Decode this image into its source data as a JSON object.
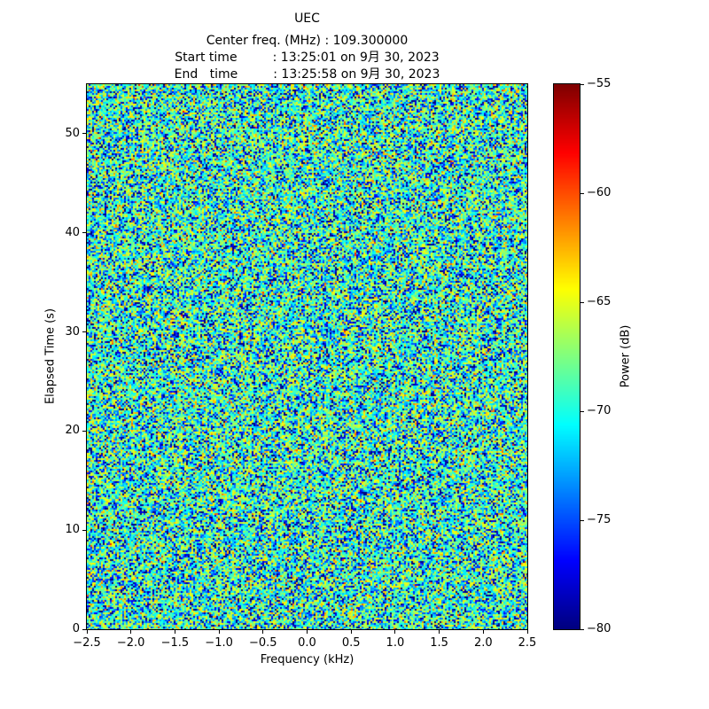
{
  "chart_data": {
    "type": "heatmap",
    "title": "UEC",
    "subtitle_lines": [
      "Center freq. (MHz) : 109.300000",
      "Start time         : 13:25:01 on 9月 30, 2023",
      "End   time         : 13:25:58 on 9月 30, 2023"
    ],
    "center_freq_mhz": "109.300000",
    "start_time": "13:25:01 on 9月 30, 2023",
    "end_time": "13:25:58 on 9月 30, 2023",
    "xlabel": "Frequency (kHz)",
    "ylabel": "Elapsed Time (s)",
    "xlim": [
      -2.5,
      2.5
    ],
    "ylim": [
      0,
      55
    ],
    "xtick_values": [
      -2.5,
      -2.0,
      -1.5,
      -1.0,
      -0.5,
      0.0,
      0.5,
      1.0,
      1.5,
      2.0,
      2.5
    ],
    "xtick_labels": [
      "−2.5",
      "−2.0",
      "−1.5",
      "−1.0",
      "−0.5",
      "0.0",
      "0.5",
      "1.0",
      "1.5",
      "2.0",
      "2.5"
    ],
    "ytick_values": [
      0,
      10,
      20,
      30,
      40,
      50
    ],
    "ytick_labels": [
      "0",
      "10",
      "20",
      "30",
      "40",
      "50"
    ],
    "colorbar": {
      "label": "Power (dB)",
      "min": -80,
      "max": -55,
      "tick_values": [
        -55,
        -60,
        -65,
        -70,
        -75,
        -80
      ],
      "tick_labels": [
        "−55",
        "−60",
        "−65",
        "−70",
        "−75",
        "−80"
      ],
      "colormap": "jet"
    },
    "noise": {
      "description": "Spectrogram of broadband receiver noise over ~57 s; no narrowband signal visible, texture is random speckle around the noise floor.",
      "distribution": "exponential power (Rayleigh amplitude) speckle",
      "mean_power_db": -70.5,
      "typical_range_db": [
        -80,
        -58
      ],
      "clip_db": [
        -80,
        -55
      ]
    }
  }
}
